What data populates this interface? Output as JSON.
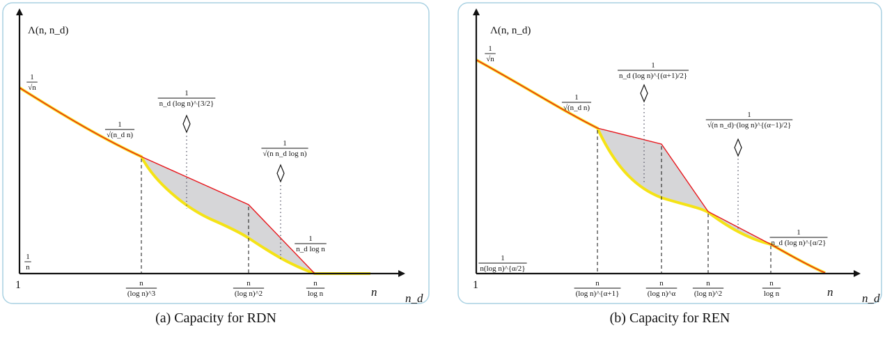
{
  "colors": {
    "frame": "#a9d1e2",
    "upper_curve": "#e8161c",
    "lower_curve": "#f5e316",
    "gap_fill": "#d6d6d8",
    "axis": "#111111"
  },
  "panels": [
    {
      "id": "a",
      "caption": "(a) Capacity for RDN",
      "y_axis_label": "Λ(n, n_d)",
      "x_axis_label": "n_d",
      "origin_label": "1",
      "x_end_label": "n",
      "y_low_label": {
        "num": "1",
        "den": "n"
      },
      "y_top_label": {
        "num": "1",
        "den": "√n"
      },
      "curve_labels": [
        {
          "num": "1",
          "den": "√(n_d n)"
        },
        {
          "num": "1",
          "den": "n_d (log n)^{3/2}"
        },
        {
          "num": "1",
          "den": "√(n n_d log n)"
        },
        {
          "num": "1",
          "den": "n_d log n"
        }
      ],
      "x_ticks": [
        {
          "num": "n",
          "den": "(log n)^3"
        },
        {
          "num": "n",
          "den": "(log n)^2"
        },
        {
          "num": "n",
          "den": "log n"
        }
      ]
    },
    {
      "id": "b",
      "caption": "(b) Capacity for REN",
      "y_axis_label": "Λ(n, n_d)",
      "x_axis_label": "n_d",
      "origin_label": "1",
      "x_end_label": "n",
      "y_low_label": {
        "num": "1",
        "den": "n(log n)^{α/2}"
      },
      "y_top_label": {
        "num": "1",
        "den": "√n"
      },
      "curve_labels": [
        {
          "num": "1",
          "den": "√(n_d n)"
        },
        {
          "num": "1",
          "den": "n_d (log n)^{(α+1)/2}"
        },
        {
          "num": "1",
          "den": "√(n n_d)·(log n)^{(α−1)/2}"
        },
        {
          "num": "1",
          "den": "n_d (log n)^{α/2}"
        }
      ],
      "x_ticks": [
        {
          "num": "n",
          "den": "(log n)^{α+1}"
        },
        {
          "num": "n",
          "den": "(log n)^α"
        },
        {
          "num": "n",
          "den": "(log n)^2"
        },
        {
          "num": "n",
          "den": "log n"
        }
      ]
    }
  ]
}
